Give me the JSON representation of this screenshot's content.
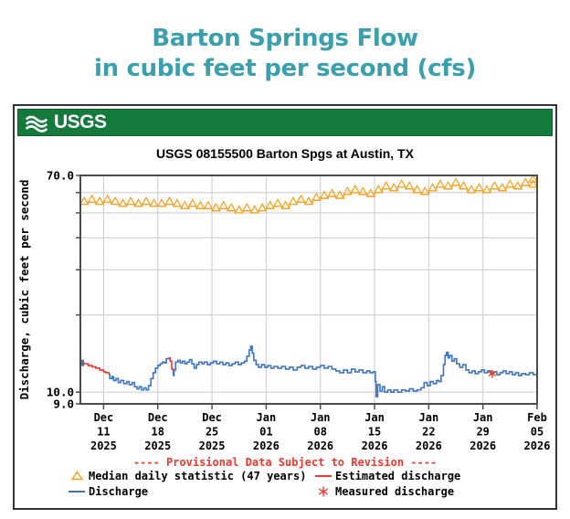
{
  "page": {
    "title_line1": "Barton Springs Flow",
    "title_line2": "in cubic feet per second (cfs)"
  },
  "header": {
    "logo_text": "USGS"
  },
  "legend": {
    "provisional_text": "---- Provisional Data Subject to Revision ----",
    "median_label": "Median daily statistic (47 years)",
    "estimated_label": "Estimated discharge",
    "discharge_label": "Discharge",
    "measured_label": "Measured discharge"
  },
  "colors": {
    "title_teal": "#3AA0AD",
    "usgs_green": "#147A3C",
    "usgs_green_border": "#0B5C2E",
    "median_orange": "#F7A426",
    "discharge_blue": "#3D73C5",
    "estimated_red": "#F0372D",
    "grid_gray": "#CCCCCC",
    "axis_dark": "#4D4D4D"
  },
  "chart_data": {
    "type": "line",
    "title": "USGS 08155500 Barton Spgs at Austin, TX",
    "ylabel": "Discharge, cubic feet per second",
    "y_scale": "log",
    "ylim": [
      9,
      70
    ],
    "y_gridlines": [
      10,
      20,
      30,
      40,
      50,
      60
    ],
    "y_tick_labels": [
      {
        "value": 70,
        "label": "70.0"
      },
      {
        "value": 10,
        "label": "10.0"
      },
      {
        "value": 9,
        "label": "9.0"
      }
    ],
    "x_start_date": "2025-12-08",
    "x_days_total": 59,
    "x_ticks": [
      {
        "t": 3,
        "lines": [
          "Dec",
          "11",
          "2025"
        ]
      },
      {
        "t": 10,
        "lines": [
          "Dec",
          "18",
          "2025"
        ]
      },
      {
        "t": 17,
        "lines": [
          "Dec",
          "25",
          "2025"
        ]
      },
      {
        "t": 24,
        "lines": [
          "Jan",
          "01",
          "2026"
        ]
      },
      {
        "t": 31,
        "lines": [
          "Jan",
          "08",
          "2026"
        ]
      },
      {
        "t": 38,
        "lines": [
          "Jan",
          "15",
          "2026"
        ]
      },
      {
        "t": 45,
        "lines": [
          "Jan",
          "22",
          "2026"
        ]
      },
      {
        "t": 52,
        "lines": [
          "Jan",
          "29",
          "2026"
        ]
      },
      {
        "t": 59,
        "lines": [
          "Feb",
          "05",
          "2026"
        ]
      }
    ],
    "median_daily_statistic": {
      "name": "Median daily statistic (47 years)",
      "values": [
        54,
        55,
        54,
        55,
        54,
        53,
        54,
        53,
        54,
        53,
        53,
        54,
        53,
        52,
        53,
        52,
        52,
        51,
        52,
        51,
        50,
        51,
        50,
        51,
        52,
        53,
        52,
        54,
        55,
        54,
        56,
        57,
        58,
        57,
        59,
        60,
        59,
        58,
        60,
        62,
        61,
        63,
        62,
        60,
        59,
        61,
        63,
        62,
        64,
        62,
        60,
        61,
        60,
        62,
        61,
        63,
        62,
        64,
        63,
        66
      ]
    },
    "discharge": {
      "name": "Discharge",
      "points": [
        [
          0,
          13.0
        ],
        [
          0.5,
          12.9
        ],
        [
          1.0,
          12.7
        ],
        [
          1.5,
          12.55
        ],
        [
          2.0,
          12.4
        ],
        [
          2.5,
          12.2
        ],
        [
          3.0,
          12.0
        ],
        [
          3.3,
          11.9
        ],
        [
          3.7,
          11.7
        ],
        [
          3.8,
          11.3
        ],
        [
          4.1,
          11.5
        ],
        [
          4.3,
          11.1
        ],
        [
          4.6,
          11.3
        ],
        [
          4.9,
          10.9
        ],
        [
          5.2,
          11.1
        ],
        [
          5.6,
          10.8
        ],
        [
          6.0,
          11.0
        ],
        [
          6.3,
          10.7
        ],
        [
          6.7,
          10.9
        ],
        [
          7.0,
          10.5
        ],
        [
          7.3,
          10.3
        ],
        [
          7.6,
          10.5
        ],
        [
          7.9,
          10.2
        ],
        [
          8.2,
          10.4
        ],
        [
          8.5,
          10.2
        ],
        [
          8.8,
          10.6
        ],
        [
          9.1,
          11.3
        ],
        [
          9.4,
          11.9
        ],
        [
          9.7,
          12.4
        ],
        [
          10.0,
          12.7
        ],
        [
          10.3,
          12.9
        ],
        [
          10.6,
          13.1
        ],
        [
          10.9,
          13.0
        ],
        [
          11.1,
          13.5
        ],
        [
          11.4,
          13.6
        ],
        [
          11.6,
          13.2
        ],
        [
          11.8,
          12.3
        ],
        [
          12.0,
          11.6
        ],
        [
          12.1,
          12.2
        ],
        [
          12.3,
          13.1
        ],
        [
          12.6,
          13.3
        ],
        [
          12.9,
          13.0
        ],
        [
          13.2,
          13.2
        ],
        [
          13.5,
          12.9
        ],
        [
          13.8,
          13.1
        ],
        [
          14.1,
          13.4
        ],
        [
          14.4,
          12.9
        ],
        [
          14.7,
          12.4
        ],
        [
          15.0,
          12.8
        ],
        [
          15.3,
          13.1
        ],
        [
          15.7,
          12.9
        ],
        [
          16.0,
          13.1
        ],
        [
          16.4,
          12.8
        ],
        [
          16.8,
          13.0
        ],
        [
          17.2,
          13.2
        ],
        [
          17.6,
          12.9
        ],
        [
          18.0,
          13.1
        ],
        [
          18.4,
          12.8
        ],
        [
          18.8,
          13.0
        ],
        [
          19.2,
          12.7
        ],
        [
          19.6,
          12.9
        ],
        [
          20.0,
          13.1
        ],
        [
          20.4,
          12.8
        ],
        [
          20.8,
          13.0
        ],
        [
          21.2,
          13.2
        ],
        [
          21.5,
          13.8
        ],
        [
          21.8,
          14.6
        ],
        [
          22.0,
          15.1
        ],
        [
          22.2,
          14.2
        ],
        [
          22.4,
          13.3
        ],
        [
          22.7,
          12.8
        ],
        [
          23.0,
          12.5
        ],
        [
          23.4,
          12.8
        ],
        [
          23.8,
          12.5
        ],
        [
          24.2,
          12.7
        ],
        [
          24.6,
          12.4
        ],
        [
          25.0,
          12.6
        ],
        [
          25.5,
          12.4
        ],
        [
          26.0,
          12.6
        ],
        [
          26.5,
          12.3
        ],
        [
          27.0,
          12.5
        ],
        [
          27.5,
          12.2
        ],
        [
          28.0,
          12.5
        ],
        [
          28.5,
          12.7
        ],
        [
          29.0,
          12.4
        ],
        [
          29.5,
          12.6
        ],
        [
          30.0,
          12.3
        ],
        [
          30.5,
          12.5
        ],
        [
          31.0,
          12.7
        ],
        [
          31.5,
          12.4
        ],
        [
          32.0,
          12.6
        ],
        [
          32.5,
          12.3
        ],
        [
          33.0,
          12.1
        ],
        [
          33.5,
          11.9
        ],
        [
          34.0,
          12.2
        ],
        [
          34.5,
          11.9
        ],
        [
          35.0,
          12.3
        ],
        [
          35.5,
          12.0
        ],
        [
          36.0,
          12.2
        ],
        [
          36.5,
          11.9
        ],
        [
          37.0,
          12.1
        ],
        [
          37.4,
          11.9
        ],
        [
          37.8,
          12.0
        ],
        [
          38.1,
          11.0
        ],
        [
          38.2,
          9.6
        ],
        [
          38.4,
          10.7
        ],
        [
          38.7,
          10.1
        ],
        [
          39.0,
          10.5
        ],
        [
          39.3,
          10.0
        ],
        [
          39.7,
          10.2
        ],
        [
          40.1,
          10.0
        ],
        [
          40.5,
          10.2
        ],
        [
          41.0,
          10.0
        ],
        [
          41.5,
          10.2
        ],
        [
          42.0,
          10.1
        ],
        [
          42.5,
          10.3
        ],
        [
          43.0,
          10.1
        ],
        [
          43.5,
          10.2
        ],
        [
          44.0,
          10.4
        ],
        [
          44.4,
          10.9
        ],
        [
          44.8,
          10.6
        ],
        [
          45.2,
          11.0
        ],
        [
          45.6,
          10.8
        ],
        [
          46.0,
          11.1
        ],
        [
          46.3,
          11.0
        ],
        [
          46.6,
          11.6
        ],
        [
          46.9,
          12.8
        ],
        [
          47.1,
          13.9
        ],
        [
          47.3,
          14.3
        ],
        [
          47.5,
          13.6
        ],
        [
          47.7,
          13.9
        ],
        [
          48.0,
          13.2
        ],
        [
          48.3,
          13.5
        ],
        [
          48.6,
          12.9
        ],
        [
          49.0,
          12.5
        ],
        [
          49.4,
          12.8
        ],
        [
          49.8,
          12.2
        ],
        [
          50.2,
          11.9
        ],
        [
          50.6,
          12.1
        ],
        [
          51.0,
          11.8
        ],
        [
          51.4,
          12.0
        ],
        [
          51.8,
          12.2
        ],
        [
          52.2,
          11.9
        ],
        [
          52.6,
          12.1
        ],
        [
          53.0,
          11.8
        ],
        [
          53.4,
          12.0
        ],
        [
          53.8,
          11.7
        ],
        [
          54.2,
          11.9
        ],
        [
          54.6,
          12.1
        ],
        [
          55.0,
          11.8
        ],
        [
          55.4,
          12.0
        ],
        [
          55.8,
          11.7
        ],
        [
          56.2,
          11.9
        ],
        [
          56.6,
          11.6
        ],
        [
          57.0,
          11.8
        ],
        [
          57.5,
          11.7
        ],
        [
          58.0,
          11.9
        ],
        [
          58.5,
          11.7
        ],
        [
          59,
          11.7
        ]
      ]
    },
    "estimated_ranges": [
      [
        0,
        3.7
      ],
      [
        11.4,
        12.0
      ]
    ],
    "measured_point": {
      "t": 53.2,
      "v": 11.8
    }
  }
}
